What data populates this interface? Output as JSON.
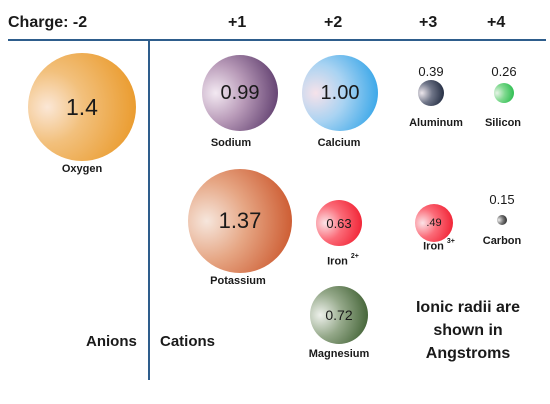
{
  "header": {
    "charge_label": "Charge: -2",
    "plus1": "+1",
    "plus2": "+2",
    "plus3": "+3",
    "plus4": "+4"
  },
  "ions": {
    "oxygen": {
      "name": "Oxygen",
      "radius": "1.4"
    },
    "sodium": {
      "name": "Sodium",
      "radius": "0.99"
    },
    "calcium": {
      "name": "Calcium",
      "radius": "1.00"
    },
    "aluminum": {
      "name": "Aluminum",
      "radius": "0.39"
    },
    "silicon": {
      "name": "Silicon",
      "radius": "0.26"
    },
    "potassium": {
      "name": "Potassium",
      "radius": "1.37"
    },
    "iron2": {
      "name": "Iron",
      "charge": "2+",
      "radius": "0.63"
    },
    "iron3": {
      "name": "Iron",
      "charge": "3+",
      "radius": ".49"
    },
    "carbon": {
      "name": "Carbon",
      "radius": "0.15"
    },
    "magnesium": {
      "name": "Magnesium",
      "radius": "0.72"
    }
  },
  "groups": {
    "anions": "Anions",
    "cations": "Cations"
  },
  "note": {
    "line1": "Ionic radii are",
    "line2": "shown in",
    "line3": "Angstroms"
  },
  "colors": {
    "divider": "#2e5d8c",
    "oxygen": "#e8921a",
    "sodium": "#4c2a5e",
    "calcium": "#1b9be6",
    "aluminum": "#101a30",
    "silicon": "#18b640",
    "potassium": "#c6471b",
    "iron": "#ee0f22",
    "carbon": "#111111",
    "magnesium": "#2f5222"
  }
}
